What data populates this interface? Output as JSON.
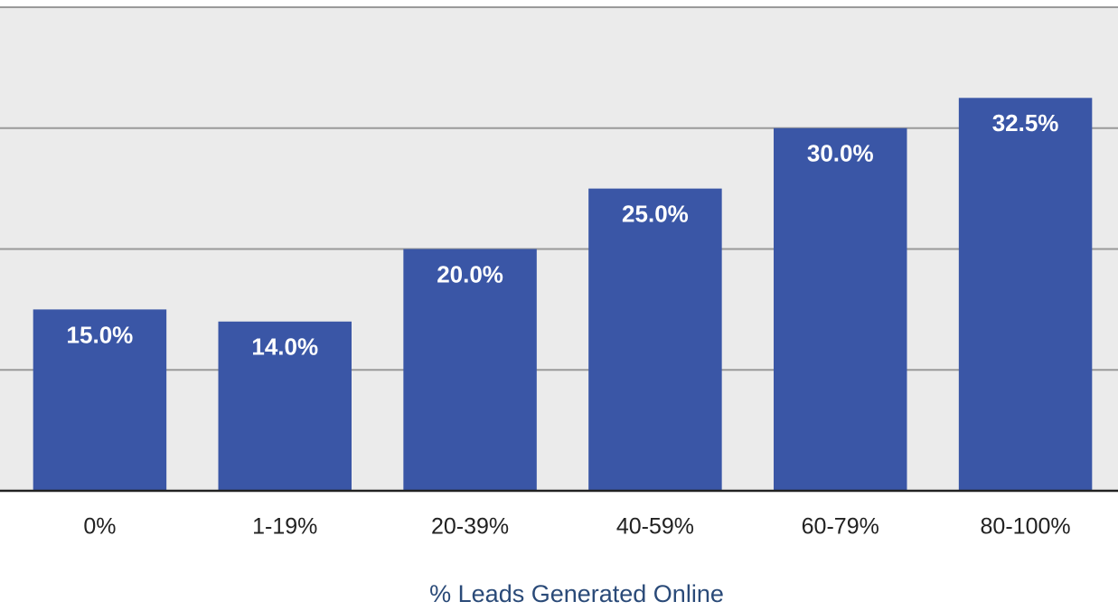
{
  "chart_data": {
    "type": "bar",
    "x_label": "% Leads Generated Online",
    "categories": [
      "0%",
      "1-19%",
      "20-39%",
      "40-59%",
      "60-79%",
      "80-100%"
    ],
    "values": [
      15.0,
      14.0,
      20.0,
      25.0,
      30.0,
      32.5
    ],
    "value_labels": [
      "15.0%",
      "14.0%",
      "20.0%",
      "25.0%",
      "30.0%",
      "32.5%"
    ],
    "color": "#3a56a6",
    "ylim": [
      0,
      40
    ],
    "yticks": [
      0,
      10,
      20,
      30,
      40
    ],
    "grid": true
  }
}
